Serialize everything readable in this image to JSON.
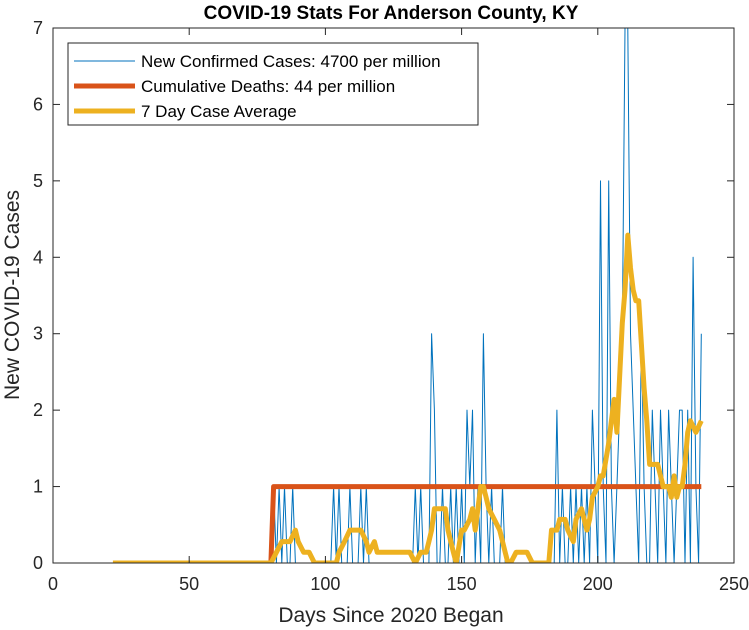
{
  "chart_data": {
    "type": "line",
    "title": "COVID-19 Stats For Anderson County, KY",
    "xlabel": "Days Since 2020 Began",
    "ylabel": "New COVID-19 Cases",
    "xlim": [
      0,
      250
    ],
    "ylim": [
      0,
      7
    ],
    "xticks": [
      0,
      50,
      100,
      150,
      200,
      250
    ],
    "yticks": [
      0,
      1,
      2,
      3,
      4,
      5,
      6,
      7
    ],
    "grid": false,
    "legend_position": "top-left",
    "series": [
      {
        "name": "New Confirmed Cases: 4700 per million",
        "color": "#0072BD",
        "x": [
          22,
          80,
          81,
          82,
          83,
          84,
          85,
          86,
          87,
          88,
          89,
          90,
          91,
          92,
          93,
          94,
          95,
          96,
          97,
          98,
          99,
          100,
          101,
          102,
          103,
          104,
          105,
          106,
          107,
          108,
          109,
          110,
          111,
          112,
          113,
          114,
          115,
          116,
          117,
          118,
          119,
          120,
          121,
          122,
          123,
          124,
          125,
          126,
          127,
          128,
          129,
          130,
          131,
          132,
          133,
          134,
          135,
          136,
          137,
          138,
          139,
          140,
          141,
          142,
          143,
          144,
          145,
          146,
          147,
          148,
          149,
          150,
          151,
          152,
          153,
          154,
          155,
          156,
          157,
          158,
          159,
          160,
          161,
          162,
          163,
          164,
          165,
          166,
          167,
          168,
          169,
          170,
          171,
          172,
          173,
          174,
          175,
          176,
          177,
          178,
          179,
          180,
          181,
          182,
          183,
          184,
          185,
          186,
          187,
          188,
          189,
          190,
          191,
          192,
          193,
          194,
          195,
          196,
          197,
          198,
          199,
          200,
          201,
          202,
          203,
          204,
          205,
          206,
          207,
          208,
          209,
          210,
          211,
          212,
          213,
          214,
          215,
          216,
          217,
          218,
          219,
          220,
          221,
          222,
          223,
          224,
          225,
          226,
          227,
          228,
          229,
          230,
          231,
          232,
          233,
          234,
          235,
          236,
          237,
          238
        ],
        "y": [
          0,
          0,
          1,
          0,
          1,
          0,
          1,
          0,
          0,
          1,
          0,
          0,
          0,
          0,
          0,
          0,
          0,
          0,
          0,
          0,
          0,
          0,
          0,
          0,
          1,
          0,
          1,
          0,
          0,
          0,
          1,
          0,
          0,
          0,
          1,
          0,
          1,
          0,
          0,
          0,
          0,
          0,
          0,
          0,
          0,
          0,
          0,
          0,
          0,
          0,
          0,
          0,
          0,
          0,
          1,
          0,
          1,
          0,
          0,
          0,
          3,
          2,
          0,
          0,
          1,
          0,
          0,
          1,
          0,
          1,
          0,
          1,
          0,
          2,
          1,
          2,
          0,
          1,
          0,
          3,
          1,
          0,
          1,
          0,
          0,
          0,
          1,
          0,
          0,
          0,
          0,
          0,
          0,
          0,
          0,
          0,
          0,
          0,
          0,
          0,
          0,
          0,
          0,
          0,
          0,
          0,
          2,
          0,
          1,
          0,
          0,
          1,
          0,
          1,
          0,
          1,
          0,
          1,
          0,
          2,
          1,
          0,
          5,
          1,
          0,
          5,
          1,
          0,
          1,
          2,
          3,
          7,
          7,
          3,
          2,
          1,
          0,
          3,
          1,
          0,
          0,
          2,
          1,
          0,
          2,
          1,
          0,
          2,
          1,
          0,
          1,
          2,
          2,
          0,
          2,
          0,
          4,
          1,
          0,
          3
        ]
      },
      {
        "name": "Cumulative Deaths: 44 per million",
        "color": "#D95319",
        "x": [
          80,
          81,
          238
        ],
        "y": [
          0,
          1,
          1
        ]
      },
      {
        "name": "7 Day Case Average",
        "color": "#EDB120",
        "x": [
          22,
          78,
          80,
          82,
          84,
          86,
          87,
          89,
          90,
          92,
          94,
          96,
          98,
          100,
          102,
          104,
          105,
          107,
          109,
          111,
          113,
          115,
          116,
          118,
          119,
          121,
          123,
          125,
          127,
          129,
          131,
          133,
          135,
          137,
          138,
          139,
          140,
          141,
          143,
          144,
          145,
          147,
          148,
          150,
          151,
          153,
          154,
          155,
          156,
          157,
          158,
          159,
          160,
          162,
          164,
          166,
          167,
          168,
          170,
          172,
          174,
          176,
          178,
          180,
          182,
          183,
          184,
          185,
          186,
          188,
          189,
          191,
          192,
          194,
          196,
          197,
          198,
          200,
          201,
          202,
          204,
          205,
          206,
          207,
          208,
          209,
          210,
          211,
          212,
          213,
          214,
          215,
          216,
          217,
          218,
          219,
          220,
          222,
          224,
          226,
          227,
          228,
          229,
          230,
          231,
          232,
          233,
          234,
          236,
          238
        ],
        "y": [
          0,
          0,
          0,
          0.14,
          0.28,
          0.28,
          0.28,
          0.43,
          0.28,
          0.14,
          0.14,
          0,
          0,
          0,
          0,
          0,
          0.14,
          0.28,
          0.43,
          0.43,
          0.43,
          0.28,
          0.14,
          0.28,
          0.14,
          0.14,
          0.14,
          0.14,
          0.14,
          0.14,
          0.14,
          0,
          0.14,
          0.14,
          0.28,
          0.43,
          0.71,
          0.71,
          0.71,
          0.71,
          0.43,
          0.14,
          0,
          0.43,
          0.43,
          0.57,
          0.71,
          0.43,
          0.71,
          1,
          1,
          0.86,
          0.71,
          0.57,
          0.43,
          0.14,
          0,
          0,
          0.14,
          0.14,
          0.14,
          0,
          0,
          0,
          0,
          0.43,
          0.43,
          0.43,
          0.57,
          0.57,
          0.43,
          0.28,
          0.57,
          0.71,
          0.43,
          0.57,
          0.86,
          1,
          1.14,
          1.14,
          1.57,
          1.86,
          2.14,
          1.71,
          2.43,
          3.14,
          3.57,
          4.29,
          3.86,
          3.57,
          3.43,
          3.43,
          2.86,
          2.29,
          1.86,
          1.29,
          1.29,
          1.29,
          1,
          1,
          0.86,
          1.14,
          0.86,
          1,
          1,
          1.29,
          1.71,
          1.86,
          1.71,
          1.86
        ]
      }
    ]
  }
}
